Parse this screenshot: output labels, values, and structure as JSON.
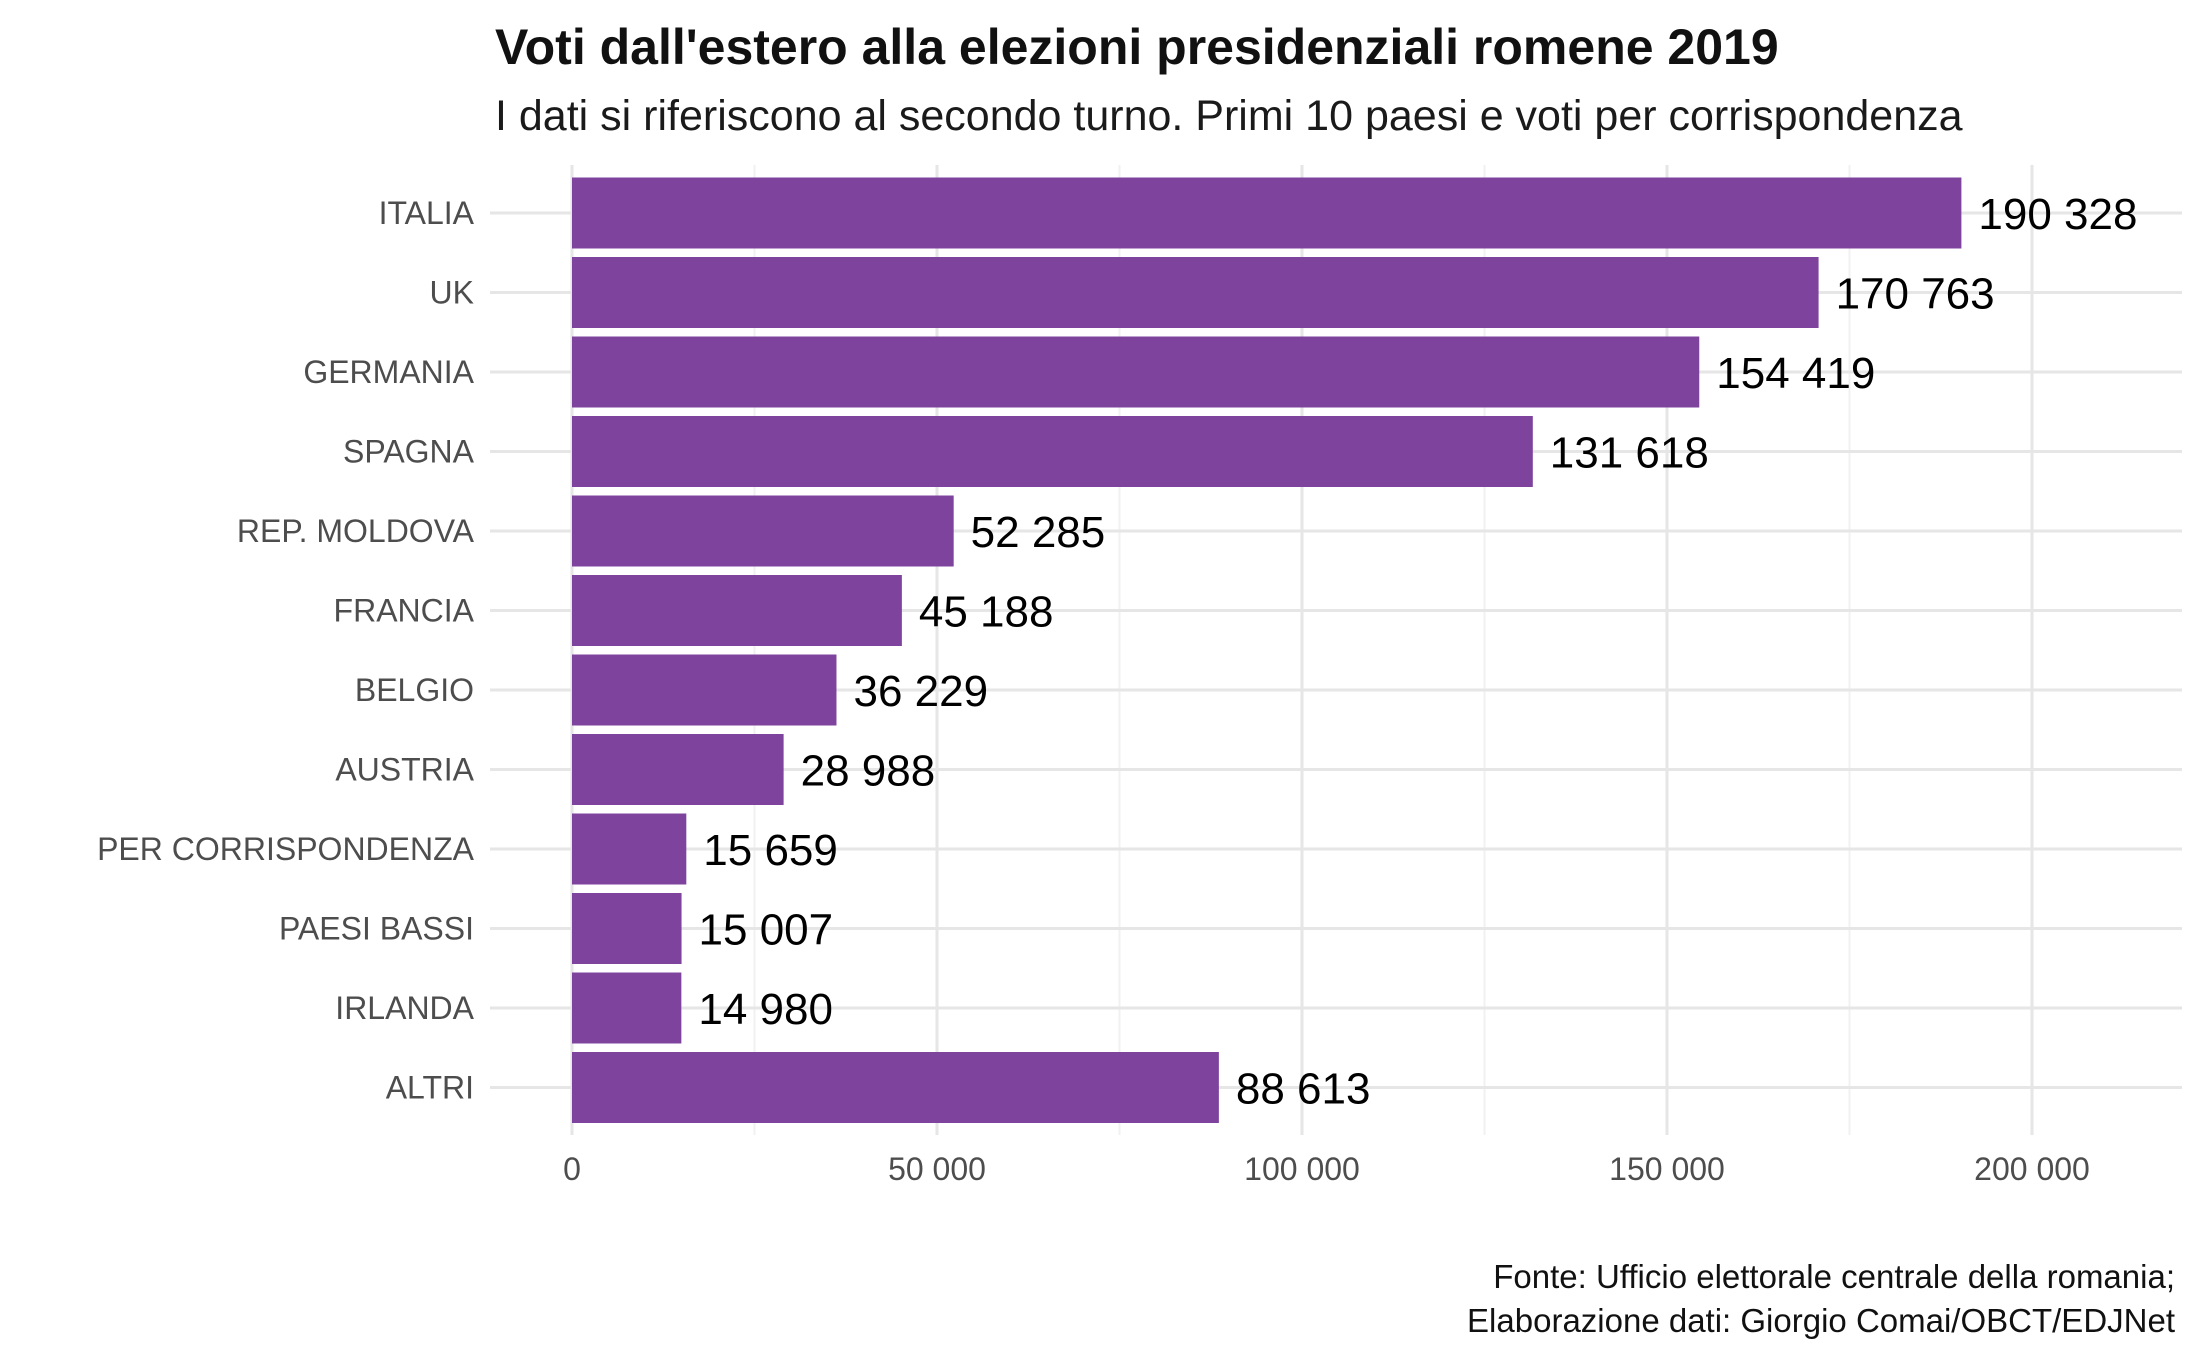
{
  "title": "Voti dall'estero alla elezioni presidenziali romene 2019",
  "subtitle": "I dati si riferiscono al secondo turno. Primi 10 paesi e voti per corrispondenza",
  "caption": {
    "line1": "Fonte: Ufficio elettorale centrale della romania;",
    "line2": "Elaborazione dati: Giorgio Comai/OBCT/EDJNet"
  },
  "chart_data": {
    "type": "bar",
    "orientation": "horizontal",
    "categories": [
      "ITALIA",
      "UK",
      "GERMANIA",
      "SPAGNA",
      "REP. MOLDOVA",
      "FRANCIA",
      "BELGIO",
      "AUSTRIA",
      "PER CORRISPONDENZA",
      "PAESI BASSI",
      "IRLANDA",
      "ALTRI"
    ],
    "values": [
      190328,
      170763,
      154419,
      131618,
      52285,
      45188,
      36229,
      28988,
      15659,
      15007,
      14980,
      88613
    ],
    "value_labels": [
      "190 328",
      "170 763",
      "154 419",
      "131 618",
      "52 285",
      "45 188",
      "36 229",
      "28 988",
      "15 659",
      "15 007",
      "14 980",
      "88 613"
    ],
    "x_ticks": [
      0,
      50000,
      100000,
      150000,
      200000
    ],
    "x_tick_labels": [
      "0",
      "50 000",
      "100 000",
      "150 000",
      "200 000"
    ],
    "xlim": [
      0,
      220000
    ],
    "bar_color": "#7b3f9b",
    "grid": true
  }
}
